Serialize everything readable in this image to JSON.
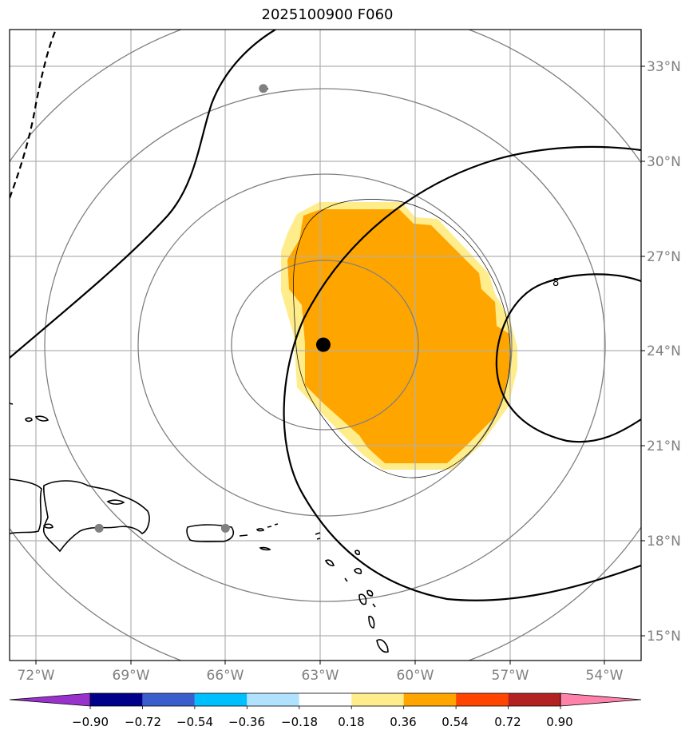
{
  "title": "2025100900 F060",
  "map": {
    "lat_labels": [
      {
        "lat": 33,
        "label": "33°N"
      },
      {
        "lat": 30,
        "label": "30°N"
      },
      {
        "lat": 27,
        "label": "27°N"
      },
      {
        "lat": 24,
        "label": "24°N"
      },
      {
        "lat": 21,
        "label": "21°N"
      },
      {
        "lat": 18,
        "label": "18°N"
      },
      {
        "lat": 15,
        "label": "15°N"
      }
    ],
    "lon_labels": [
      {
        "lon": -72,
        "label": "72°W"
      },
      {
        "lon": -69,
        "label": "69°W"
      },
      {
        "lon": -66,
        "label": "66°W"
      },
      {
        "lon": -63,
        "label": "63°W"
      },
      {
        "lon": -60,
        "label": "60°W"
      },
      {
        "lon": -57,
        "label": "57°W"
      },
      {
        "lon": -54,
        "label": "54°W"
      }
    ],
    "center_marker": {
      "lon": -62.9,
      "lat": 24.2
    },
    "grey_markers": [
      {
        "lon": -64.8,
        "lat": 32.3
      },
      {
        "lon": -70.0,
        "lat": 18.4
      },
      {
        "lon": -66.0,
        "lat": 18.4
      }
    ],
    "contour_label": "8",
    "colors": {
      "grid": "#b0b0b0",
      "range_rings": "#808080",
      "axis_label": "#808080",
      "contour": "#000000",
      "fill_orange": "#ffa500",
      "fill_yellow": "#ffec8b"
    }
  },
  "colorbar": {
    "ticks": [
      "−0.90",
      "−0.72",
      "−0.54",
      "−0.36",
      "−0.18",
      "0.18",
      "0.36",
      "0.54",
      "0.72",
      "0.90"
    ],
    "colors": [
      "#9932cc",
      "#00008b",
      "#3a5fcd",
      "#00bfff",
      "#b0e2ff",
      "#ffffff",
      "#ffec8b",
      "#ffa500",
      "#ff4500",
      "#b22222",
      "#ff82ab"
    ]
  }
}
